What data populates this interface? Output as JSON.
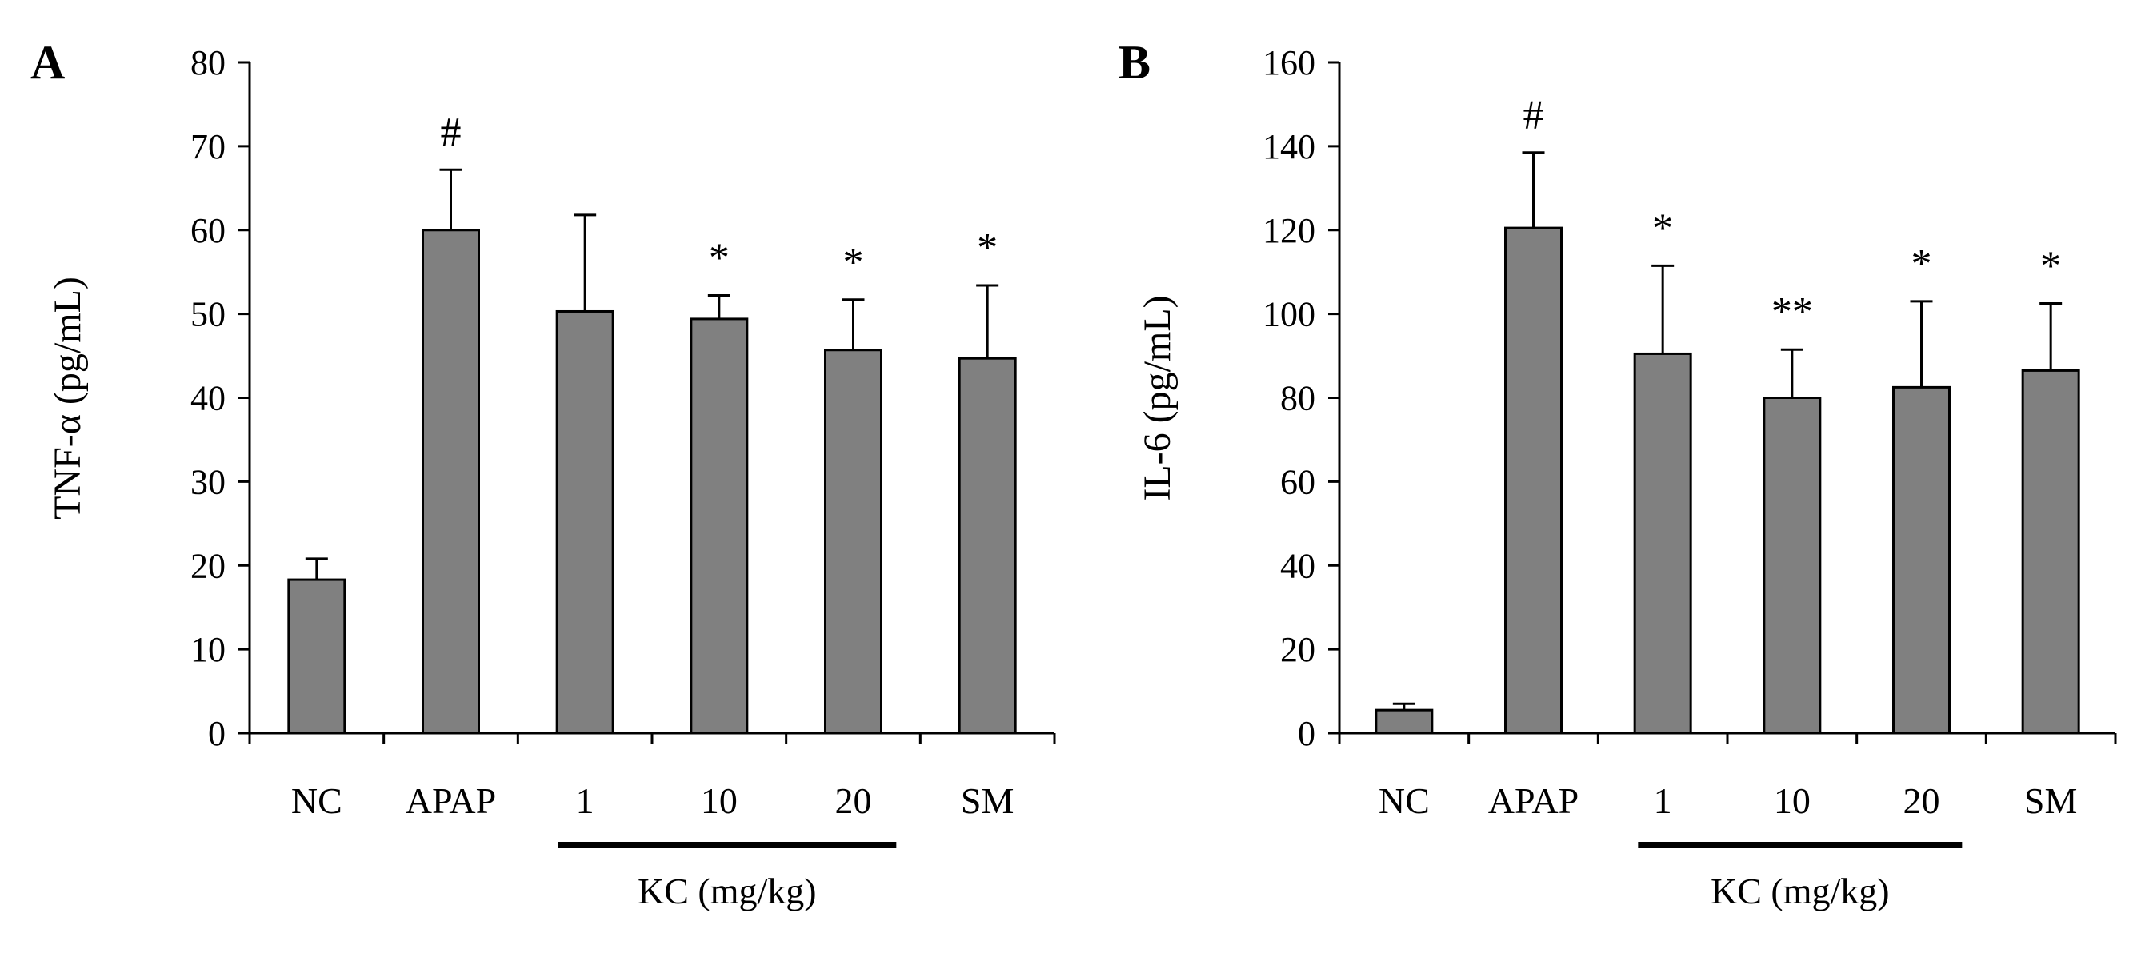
{
  "chart_data": [
    {
      "type": "bar",
      "panel_label": "A",
      "title": "",
      "xlabel": "",
      "ylabel": "TNF-α (pg/mL)",
      "ylim": [
        0,
        80
      ],
      "ytick_step": 10,
      "yticks": [
        "0",
        "10",
        "20",
        "30",
        "40",
        "50",
        "60",
        "70",
        "80"
      ],
      "categories": [
        "NC",
        "APAP",
        "1",
        "10",
        "20",
        "SM"
      ],
      "values": [
        18.3,
        60.0,
        50.3,
        49.4,
        45.7,
        44.7
      ],
      "errors": [
        2.5,
        7.2,
        11.5,
        2.8,
        6.0,
        8.7
      ],
      "significance": [
        "",
        "#",
        "",
        "*",
        "*",
        "*"
      ],
      "group": {
        "label": "KC (mg/kg)",
        "from": 2,
        "to": 4
      },
      "bar_color": "#808080",
      "grid": false
    },
    {
      "type": "bar",
      "panel_label": "B",
      "title": "",
      "xlabel": "",
      "ylabel": "IL-6 (pg/mL)",
      "ylim": [
        0,
        160
      ],
      "ytick_step": 20,
      "yticks": [
        "0",
        "20",
        "40",
        "60",
        "80",
        "100",
        "120",
        "140",
        "160"
      ],
      "categories": [
        "NC",
        "APAP",
        "1",
        "10",
        "20",
        "SM"
      ],
      "values": [
        5.5,
        120.5,
        90.5,
        80.0,
        82.5,
        86.5
      ],
      "errors": [
        1.5,
        18.0,
        21.0,
        11.5,
        20.5,
        16.0
      ],
      "significance": [
        "",
        "#",
        "*",
        "**",
        "*",
        "*"
      ],
      "group": {
        "label": "KC (mg/kg)",
        "from": 2,
        "to": 4
      },
      "bar_color": "#808080",
      "grid": false
    }
  ]
}
